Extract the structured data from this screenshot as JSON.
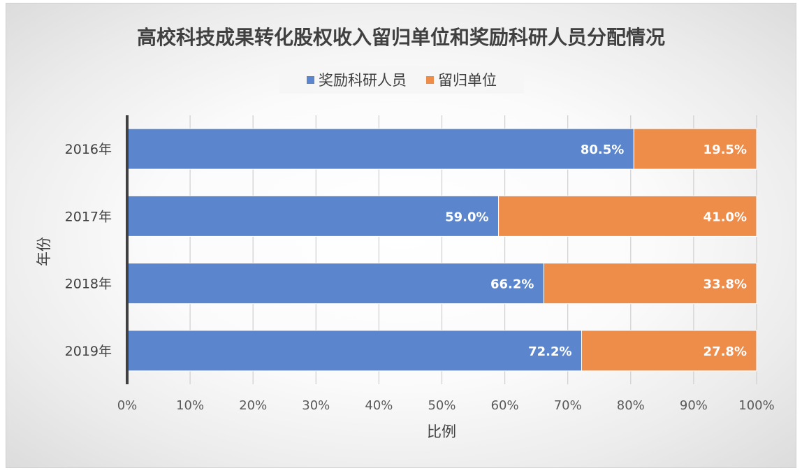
{
  "colors": {
    "series1": "#5b86cd",
    "series2": "#ee8c4a"
  },
  "chart_data": {
    "type": "bar",
    "orientation": "horizontal",
    "stacked": "percent",
    "title": "高校科技成果转化股权收入留归单位和奖励科研人员分配情况",
    "xlabel": "比例",
    "ylabel": "年份",
    "categories": [
      "2016年",
      "2017年",
      "2018年",
      "2019年"
    ],
    "series": [
      {
        "name": "奖励科研人员",
        "values": [
          80.5,
          59.0,
          66.2,
          72.2
        ],
        "labels": [
          "80.5%",
          "59.0%",
          "66.2%",
          "72.2%"
        ]
      },
      {
        "name": "留归单位",
        "values": [
          19.5,
          41.0,
          33.8,
          27.8
        ],
        "labels": [
          "19.5%",
          "41.0%",
          "33.8%",
          "27.8%"
        ]
      }
    ],
    "xlim": [
      0,
      100
    ],
    "xticks": [
      "0%",
      "10%",
      "20%",
      "30%",
      "40%",
      "50%",
      "60%",
      "70%",
      "80%",
      "90%",
      "100%"
    ],
    "legend_position": "top",
    "grid": true
  }
}
